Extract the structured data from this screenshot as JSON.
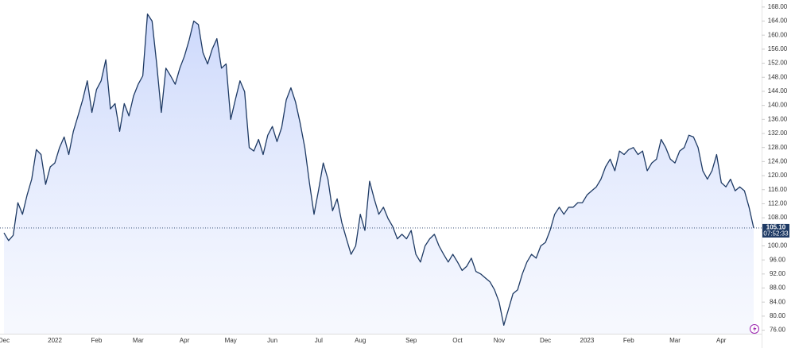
{
  "chart_data": {
    "type": "area",
    "categories": [
      "Dec",
      null,
      null,
      null,
      null,
      null,
      null,
      null,
      null,
      null,
      null,
      "2022",
      null,
      null,
      null,
      null,
      null,
      null,
      null,
      null,
      "Feb",
      null,
      null,
      null,
      null,
      null,
      null,
      null,
      null,
      "Mar",
      null,
      null,
      null,
      null,
      null,
      null,
      null,
      null,
      null,
      "Apr",
      null,
      null,
      null,
      null,
      null,
      null,
      null,
      null,
      null,
      "May",
      null,
      null,
      null,
      null,
      null,
      null,
      null,
      null,
      "Jun",
      null,
      null,
      null,
      null,
      null,
      null,
      null,
      null,
      null,
      "Jul",
      null,
      null,
      null,
      null,
      null,
      null,
      null,
      null,
      "Aug",
      null,
      null,
      null,
      null,
      null,
      null,
      null,
      null,
      null,
      null,
      "Sep",
      null,
      null,
      null,
      null,
      null,
      null,
      null,
      null,
      null,
      "Oct",
      null,
      null,
      null,
      null,
      null,
      null,
      null,
      null,
      "Nov",
      null,
      null,
      null,
      null,
      null,
      null,
      null,
      null,
      null,
      "Dec",
      null,
      null,
      null,
      null,
      null,
      null,
      null,
      null,
      "2023",
      null,
      null,
      null,
      null,
      null,
      null,
      null,
      null,
      "Feb",
      null,
      null,
      null,
      null,
      null,
      null,
      null,
      null,
      null,
      "Mar",
      null,
      null,
      null,
      null,
      null,
      null,
      null,
      null,
      null,
      "Apr",
      null,
      null,
      null,
      null,
      null,
      null,
      null
    ],
    "series": [
      {
        "color": "#1e3a64",
        "fill": "#c9d6fb",
        "values": [
          103.7,
          101.5,
          103,
          112.3,
          109,
          114.5,
          119,
          127.4,
          126,
          117.5,
          122.5,
          123.6,
          128,
          131,
          126,
          132.6,
          137,
          141.6,
          147,
          138,
          144.5,
          147,
          153,
          139,
          140.5,
          132.6,
          140.5,
          137,
          142.7,
          146,
          148.4,
          166,
          164,
          151.8,
          138,
          150.6,
          148.4,
          146,
          150.6,
          154,
          158.5,
          164,
          163,
          155,
          151.8,
          156,
          159,
          150.6,
          151.8,
          136,
          141.6,
          147,
          143.9,
          128,
          127,
          130.3,
          126,
          131.5,
          134,
          129.7,
          133.7,
          141.6,
          145,
          141,
          135,
          128,
          118,
          109,
          116,
          123.6,
          119,
          110,
          113.4,
          106.7,
          102,
          97.6,
          100,
          109,
          104.4,
          118.4,
          113.4,
          109,
          111,
          107.8,
          105.5,
          102,
          103.3,
          102,
          104.4,
          97.6,
          95.4,
          100,
          102,
          103.3,
          100,
          97.6,
          95.4,
          97.6,
          95.4,
          93,
          94.2,
          96.5,
          92.7,
          92,
          90.9,
          89.8,
          87.5,
          84,
          77.4,
          81.9,
          86.4,
          87.5,
          92,
          95.4,
          97.6,
          96.5,
          100,
          101,
          104.4,
          109,
          111,
          109,
          111,
          111,
          112.3,
          112.3,
          114.5,
          115.7,
          116.8,
          119,
          122.5,
          124.7,
          121.4,
          127,
          126,
          127.4,
          128,
          126,
          127,
          121.4,
          123.6,
          124.7,
          130.3,
          128,
          124.7,
          123.6,
          127,
          128,
          131.5,
          131,
          128,
          121.4,
          119,
          121.4,
          126,
          118,
          116.8,
          119,
          115.7,
          116.8,
          115.7,
          111,
          105.1
        ]
      }
    ],
    "ylim": [
      75,
      170
    ],
    "yticks": [
      {
        "value": 76,
        "label": "76.00"
      },
      {
        "value": 80,
        "label": "80.00"
      },
      {
        "value": 84,
        "label": "84.00"
      },
      {
        "value": 88,
        "label": "88.00"
      },
      {
        "value": 92,
        "label": "92.00"
      },
      {
        "value": 96,
        "label": "96.00"
      },
      {
        "value": 100,
        "label": "100.00"
      },
      {
        "value": 104,
        "label": "104.00"
      },
      {
        "value": 108,
        "label": "108.00"
      },
      {
        "value": 112,
        "label": "112.00"
      },
      {
        "value": 116,
        "label": "116.00"
      },
      {
        "value": 120,
        "label": "120.00"
      },
      {
        "value": 124,
        "label": "124.00"
      },
      {
        "value": 128,
        "label": "128.00"
      },
      {
        "value": 132,
        "label": "132.00"
      },
      {
        "value": 136,
        "label": "136.00"
      },
      {
        "value": 140,
        "label": "140.00"
      },
      {
        "value": 144,
        "label": "144.00"
      },
      {
        "value": 148,
        "label": "148.00"
      },
      {
        "value": 152,
        "label": "152.00"
      },
      {
        "value": 156,
        "label": "156.00"
      },
      {
        "value": 160,
        "label": "160.00"
      },
      {
        "value": 164,
        "label": "164.00"
      },
      {
        "value": 168,
        "label": "168.00"
      }
    ],
    "last_price": {
      "value": 105.1,
      "label": "105.10"
    },
    "countdown": "07:52:33"
  }
}
